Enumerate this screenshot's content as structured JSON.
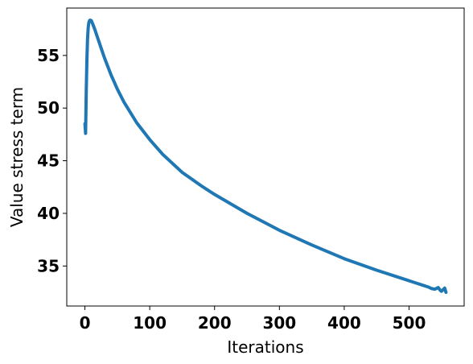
{
  "chart_data": {
    "type": "line",
    "title": "",
    "xlabel": "Iterations",
    "ylabel": "Value stress term",
    "xlim": [
      -28,
      585
    ],
    "ylim": [
      31.2,
      59.5
    ],
    "x_ticks": [
      0,
      100,
      200,
      300,
      400,
      500
    ],
    "x_tick_labels": [
      "0",
      "100",
      "200",
      "300",
      "400",
      "500"
    ],
    "y_ticks": [
      35,
      40,
      45,
      50,
      55
    ],
    "y_tick_labels": [
      "35",
      "40",
      "45",
      "50",
      "55"
    ],
    "grid": false,
    "legend": "none",
    "series": [
      {
        "color": "#1f77b4",
        "x": [
          0,
          1,
          2,
          3,
          4,
          5,
          6,
          7,
          8,
          10,
          12,
          15,
          20,
          25,
          30,
          40,
          50,
          60,
          80,
          100,
          120,
          150,
          180,
          200,
          250,
          300,
          350,
          400,
          450,
          500,
          520,
          530,
          535,
          540,
          545,
          548,
          550,
          555,
          557
        ],
        "y": [
          48.5,
          47.6,
          51.5,
          54.5,
          56.5,
          57.6,
          58.1,
          58.3,
          58.35,
          58.3,
          58.0,
          57.5,
          56.6,
          55.7,
          54.8,
          53.2,
          51.8,
          50.6,
          48.6,
          47.0,
          45.6,
          43.9,
          42.6,
          41.8,
          40.0,
          38.4,
          37.0,
          35.7,
          34.6,
          33.6,
          33.2,
          33.0,
          32.85,
          32.8,
          32.95,
          32.7,
          32.6,
          32.9,
          32.5
        ]
      }
    ]
  }
}
